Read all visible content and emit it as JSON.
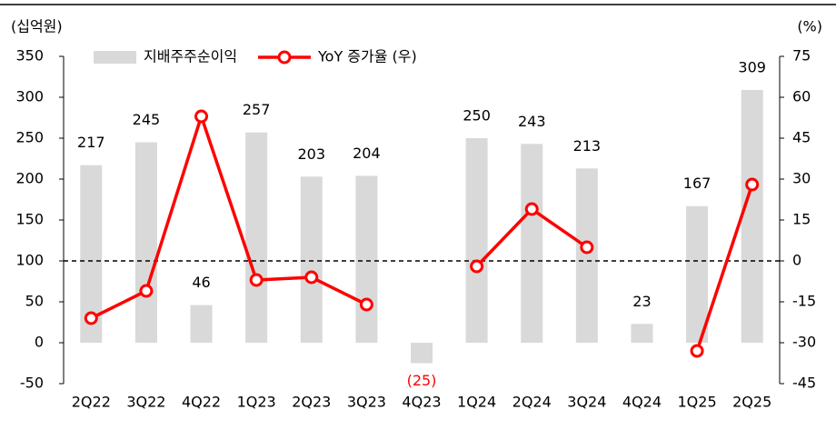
{
  "chart_data": {
    "type": "bar_line",
    "y_label": "(십억원)",
    "y2_label": "(%)",
    "categories": [
      "2Q22",
      "3Q22",
      "4Q22",
      "1Q23",
      "2Q23",
      "3Q23",
      "4Q23",
      "1Q24",
      "2Q24",
      "3Q24",
      "4Q24",
      "1Q25",
      "2Q25"
    ],
    "series": [
      {
        "name": "지배주주순이익",
        "type": "bar",
        "color": "#d9d9d9",
        "values": [
          217,
          245,
          46,
          257,
          203,
          204,
          -25,
          250,
          243,
          213,
          23,
          167,
          309
        ],
        "value_labels": [
          "217",
          "245",
          "46",
          "257",
          "203",
          "204",
          "(25)",
          "250",
          "243",
          "213",
          "23",
          "167",
          "309"
        ],
        "negative_label_color": "#ff0000"
      },
      {
        "name": "YoY 증가율 (우)",
        "type": "line",
        "axis": "y2",
        "color": "#ff0000",
        "values": [
          -21,
          -11,
          53,
          -7,
          -6,
          -16,
          null,
          -2,
          19,
          5,
          null,
          -33,
          28
        ]
      }
    ],
    "ylim": [
      -50,
      350
    ],
    "yticks": [
      -50,
      0,
      50,
      100,
      150,
      200,
      250,
      300,
      350
    ],
    "y2lim": [
      -45,
      75
    ],
    "y2ticks": [
      -45,
      -30,
      -15,
      0,
      15,
      30,
      45,
      60,
      75
    ],
    "y2_reference_line": 0
  }
}
